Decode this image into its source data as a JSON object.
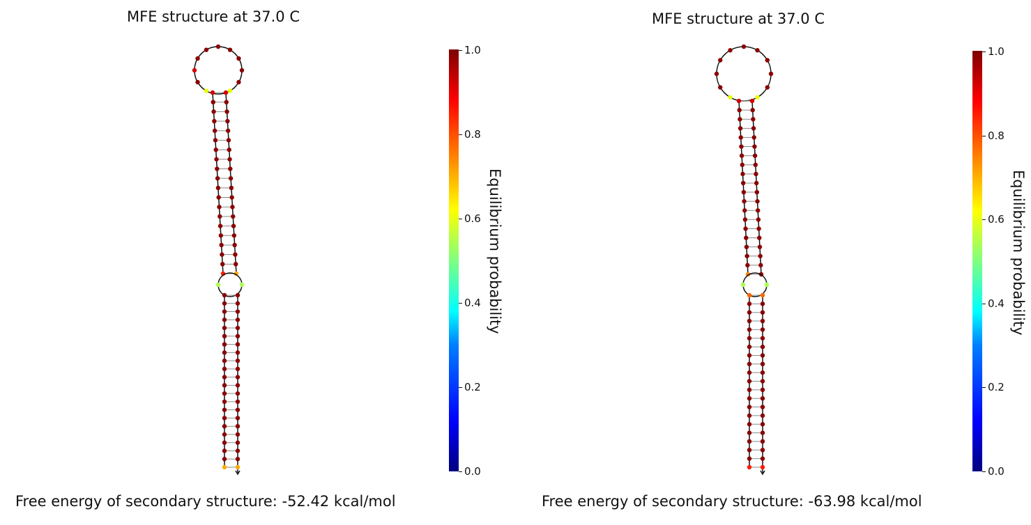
{
  "panels": [
    {
      "title": "MFE structure at 37.0 C",
      "energy_text": "Free energy of secondary structure: -52.42 kcal/mol",
      "colorbar": {
        "label": "Equilibrium probability",
        "ticks": [
          "1.0",
          "0.8",
          "0.6",
          "0.4",
          "0.2",
          "0.0"
        ]
      },
      "structure": {
        "loop_color_probs": [
          0.62,
          1,
          0.95,
          1,
          1,
          1,
          1,
          1,
          1,
          1,
          0.62
        ],
        "upper_stem_pairs": 20,
        "upper_stem_end_colors": [
          "#ff1a00",
          "#ffaa00"
        ],
        "inner_loop_colors": [
          "#aaff4d",
          "#aaff4d"
        ],
        "lower_stem_pairs": 22,
        "lower_stem_end_colors": [
          "#ffaa00",
          "#ffaa00"
        ]
      }
    },
    {
      "title": "MFE structure at 37.0 C",
      "energy_text": "Free energy of secondary structure: -63.98 kcal/mol",
      "colorbar": {
        "label": "Equilibrium probability",
        "ticks": [
          "1.0",
          "0.8",
          "0.6",
          "0.4",
          "0.2",
          "0.0"
        ]
      },
      "structure": {
        "loop_color_probs": [
          0.7,
          1,
          1,
          1,
          1,
          1,
          1,
          1,
          1,
          1,
          0.7
        ],
        "upper_stem_pairs": 20,
        "upper_stem_end_colors": [
          "#ff8000",
          "#8b0000"
        ],
        "inner_loop_colors": [
          "#aaff4d",
          "#aaff4d"
        ],
        "lower_stem_pairs": 21,
        "lower_stem_end_colors": [
          "#ff1a00",
          "#ff1a00"
        ]
      }
    }
  ],
  "colors": {
    "base_dark": "#8b0000",
    "base_red": "#d40000",
    "backbone": "#111111",
    "pair_line": "#888888"
  }
}
